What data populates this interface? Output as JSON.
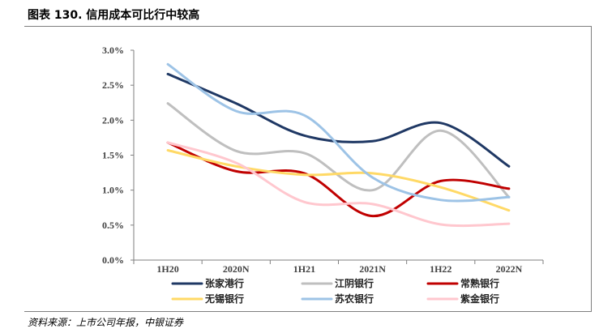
{
  "header": {
    "title": "图表 130. 信用成本可比行中较高"
  },
  "footer": {
    "source": "资料来源：上市公司年报，中银证券"
  },
  "chart_data": {
    "type": "line",
    "categories": [
      "1H20",
      "2020N",
      "1H21",
      "2021N",
      "1H22",
      "2022N"
    ],
    "yticks": [
      "0.0%",
      "0.5%",
      "1.0%",
      "1.5%",
      "2.0%",
      "2.5%",
      "3.0%"
    ],
    "ylim": [
      0,
      3.0
    ],
    "grid": false,
    "legend_position": "bottom",
    "smooth": true,
    "series": [
      {
        "name": "张家港行",
        "color": "#1f3864",
        "values": [
          2.66,
          2.24,
          1.78,
          1.7,
          1.96,
          1.34
        ]
      },
      {
        "name": "江阴银行",
        "color": "#bfbfbf",
        "values": [
          2.24,
          1.56,
          1.53,
          1.0,
          1.85,
          0.9
        ]
      },
      {
        "name": "常熟银行",
        "color": "#c00000",
        "values": [
          1.68,
          1.27,
          1.24,
          0.63,
          1.13,
          1.02
        ]
      },
      {
        "name": "无锡银行",
        "color": "#ffd966",
        "values": [
          1.57,
          1.34,
          1.22,
          1.24,
          1.04,
          0.71
        ]
      },
      {
        "name": "苏农银行",
        "color": "#9dc3e6",
        "values": [
          2.8,
          2.13,
          2.07,
          1.18,
          0.86,
          0.9
        ]
      },
      {
        "name": "紫金银行",
        "color": "#ffc7ce",
        "values": [
          1.68,
          1.39,
          0.83,
          0.8,
          0.51,
          0.52
        ]
      }
    ]
  }
}
